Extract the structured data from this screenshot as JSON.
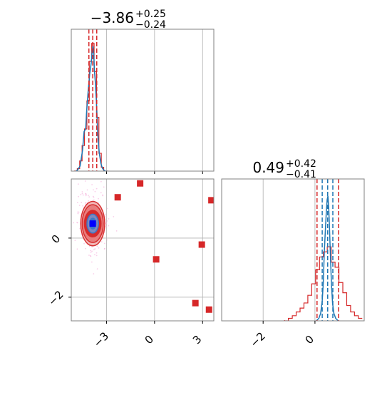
{
  "chart_data": [
    {
      "type": "histogram",
      "panel": "top-left",
      "title_value": "−3.86",
      "title_plus": "+0.25",
      "title_minus": "−0.24",
      "xlim": [
        -5.2,
        3.7
      ],
      "grid": true,
      "vlines_red": [
        -4.1,
        -3.86,
        -3.61
      ],
      "red_hist": {
        "x": [
          -4.9,
          -4.75,
          -4.6,
          -4.45,
          -4.3,
          -4.15,
          -4.0,
          -3.85,
          -3.7,
          -3.55,
          -3.4,
          -3.25,
          -3.1,
          -2.95
        ],
        "y": [
          0.0,
          0.02,
          0.08,
          0.2,
          0.33,
          0.55,
          0.86,
          1.0,
          0.78,
          0.42,
          0.14,
          0.03,
          0.0,
          0.0
        ]
      },
      "blue_line": {
        "x": [
          -4.9,
          -4.8,
          -4.65,
          -4.5,
          -4.4,
          -4.3,
          -4.25,
          -4.15,
          -4.05,
          -3.95,
          -3.9,
          -3.85,
          -3.8,
          -3.75,
          -3.7,
          -3.62,
          -3.55,
          -3.45,
          -3.35,
          -3.25,
          -3.1,
          -2.95
        ],
        "y": [
          0.0,
          0.01,
          0.04,
          0.16,
          0.31,
          0.33,
          0.45,
          0.62,
          0.76,
          0.85,
          0.93,
          0.98,
          0.92,
          0.78,
          0.7,
          0.52,
          0.3,
          0.14,
          0.06,
          0.02,
          0.0,
          0.0
        ]
      }
    },
    {
      "type": "histogram",
      "panel": "bottom-right",
      "title_value": "0.49",
      "title_plus": "+0.42",
      "title_minus": "−0.41",
      "xlim": [
        -3.6,
        1.9
      ],
      "xticks": [
        "−2",
        "0"
      ],
      "xtick_values": [
        -2,
        0
      ],
      "grid": true,
      "vlines_red": [
        0.08,
        0.49,
        0.91
      ],
      "vlines_blue": [
        0.28,
        0.49,
        0.69
      ],
      "red_hist": {
        "x": [
          -1.1,
          -0.95,
          -0.8,
          -0.65,
          -0.5,
          -0.35,
          -0.2,
          -0.05,
          0.1,
          0.25,
          0.4,
          0.55,
          0.7,
          0.85,
          1.0,
          1.15,
          1.3,
          1.45,
          1.6,
          1.75
        ],
        "y": [
          0.0,
          0.02,
          0.04,
          0.07,
          0.1,
          0.14,
          0.2,
          0.29,
          0.4,
          0.5,
          0.54,
          0.58,
          0.46,
          0.42,
          0.3,
          0.22,
          0.12,
          0.07,
          0.04,
          0.02
        ]
      },
      "blue_line": {
        "x": [
          0.05,
          0.15,
          0.22,
          0.28,
          0.32,
          0.36,
          0.4,
          0.44,
          0.47,
          0.5,
          0.53,
          0.56,
          0.6,
          0.64,
          0.68,
          0.73,
          0.8,
          0.9
        ],
        "y": [
          0.0,
          0.02,
          0.06,
          0.16,
          0.3,
          0.55,
          0.72,
          0.88,
          0.97,
          1.0,
          0.91,
          0.75,
          0.5,
          0.28,
          0.14,
          0.06,
          0.02,
          0.0
        ]
      }
    },
    {
      "type": "scatter",
      "panel": "bottom-left",
      "xlim": [
        -5.2,
        3.7
      ],
      "ylim": [
        -2.8,
        2.0
      ],
      "xticks": [
        "−3",
        "0",
        "3"
      ],
      "xtick_values": [
        -3,
        0,
        3
      ],
      "yticks": [
        "0",
        "−2"
      ],
      "ytick_values": [
        0,
        -2
      ],
      "grid": true,
      "red_squares": [
        {
          "x": -2.3,
          "y": 1.38
        },
        {
          "x": -0.9,
          "y": 1.85
        },
        {
          "x": 3.55,
          "y": 1.28
        },
        {
          "x": 0.1,
          "y": -0.72
        },
        {
          "x": 2.95,
          "y": -0.22
        },
        {
          "x": 2.55,
          "y": -2.2
        },
        {
          "x": 3.4,
          "y": -2.42
        }
      ],
      "blue_square": {
        "x": -3.86,
        "y": 0.49
      },
      "contours": [
        {
          "cx": -3.86,
          "cy": 0.49,
          "rx": 0.75,
          "ry": 0.75,
          "fill": "#f2b7b7",
          "stroke": "#d62728"
        },
        {
          "cx": -3.86,
          "cy": 0.49,
          "rx": 0.66,
          "ry": 0.64,
          "fill": "#e87a7a",
          "stroke": "#d62728"
        },
        {
          "cx": -3.86,
          "cy": 0.49,
          "rx": 0.52,
          "ry": 0.45,
          "fill": "#d62728",
          "stroke": "#d62728"
        },
        {
          "cx": -3.86,
          "cy": 0.49,
          "rx": 0.36,
          "ry": 0.32,
          "fill": "#7a8fc5",
          "stroke": "#3a78c9"
        },
        {
          "cx": -3.86,
          "cy": 0.49,
          "rx": 0.2,
          "ry": 0.18,
          "fill": "#3a78c9",
          "stroke": "#3a78c9"
        }
      ]
    }
  ],
  "colors": {
    "red": "#d62728",
    "blue": "#1f77b4",
    "grid": "#b0b0b0",
    "frame": "#808080",
    "pink_dots": "#f4a6d7"
  }
}
